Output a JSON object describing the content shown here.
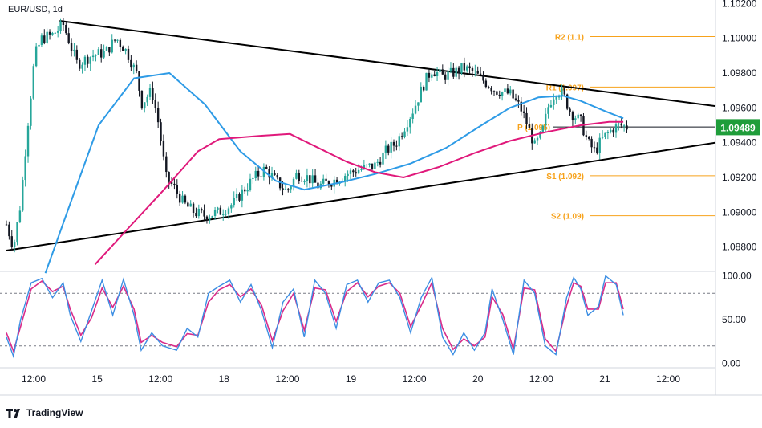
{
  "symbol_label": "EUR/USD, 1d",
  "brand": "TradingView",
  "colors": {
    "up": "#26a69a",
    "down": "#131722",
    "sma_fast": "#2e9be6",
    "sma_slow": "#e0197b",
    "pivot": "#f7a21b",
    "trendline": "#000000",
    "price_tag": "#1f9d3a",
    "stoch_k": "#3c8ee3",
    "stoch_d": "#d92c8a"
  },
  "chart_data": [
    {
      "type": "line",
      "title": "EUR/USD, 1d",
      "ylim": [
        1.0866,
        1.1022
      ],
      "y_ticks": [
        "1.10200",
        "1.10000",
        "1.09800",
        "1.09600",
        "1.09400",
        "1.09200",
        "1.09000",
        "1.08800"
      ],
      "x_ticks": [
        "12:00",
        "15",
        "12:00",
        "18",
        "12:00",
        "19",
        "12:00",
        "20",
        "12:00",
        "21",
        "12:00"
      ],
      "current_price": "1.09489",
      "pivot_levels": [
        {
          "label": "R2 (1.1)",
          "value": 1.1001
        },
        {
          "label": "R1 (1.097)",
          "value": 1.0972
        },
        {
          "label": "P (1.095)",
          "value": 1.0949
        },
        {
          "label": "S1 (1.092)",
          "value": 1.0921
        },
        {
          "label": "S2 (1.09)",
          "value": 1.0898
        }
      ],
      "trendlines": [
        {
          "name": "upper",
          "points": [
            [
              0.075,
              1.101
            ],
            [
              1.0,
              1.0961
            ]
          ]
        },
        {
          "name": "lower",
          "points": [
            [
              0.0,
              1.0878
            ],
            [
              1.0,
              1.094
            ]
          ]
        }
      ],
      "close_path": [
        [
          0.0,
          1.0893
        ],
        [
          0.01,
          1.088
        ],
        [
          0.02,
          1.0905
        ],
        [
          0.03,
          1.095
        ],
        [
          0.04,
          1.099
        ],
        [
          0.05,
          1.1
        ],
        [
          0.065,
          1.1002
        ],
        [
          0.08,
          1.1008
        ],
        [
          0.1,
          1.0985
        ],
        [
          0.12,
          1.099
        ],
        [
          0.14,
          1.0992
        ],
        [
          0.155,
          1.1
        ],
        [
          0.17,
          1.0992
        ],
        [
          0.185,
          1.0978
        ],
        [
          0.19,
          1.0962
        ],
        [
          0.205,
          1.097
        ],
        [
          0.215,
          1.095
        ],
        [
          0.225,
          1.092
        ],
        [
          0.235,
          1.0915
        ],
        [
          0.25,
          1.0905
        ],
        [
          0.265,
          1.09
        ],
        [
          0.28,
          1.0898
        ],
        [
          0.3,
          1.09
        ],
        [
          0.32,
          1.0905
        ],
        [
          0.335,
          1.0913
        ],
        [
          0.35,
          1.092
        ],
        [
          0.365,
          1.0925
        ],
        [
          0.38,
          1.0918
        ],
        [
          0.395,
          1.0912
        ],
        [
          0.41,
          1.0922
        ],
        [
          0.425,
          1.092
        ],
        [
          0.44,
          1.0915
        ],
        [
          0.46,
          1.0918
        ],
        [
          0.48,
          1.0922
        ],
        [
          0.5,
          1.0925
        ],
        [
          0.52,
          1.0927
        ],
        [
          0.535,
          1.0935
        ],
        [
          0.55,
          1.094
        ],
        [
          0.565,
          1.0952
        ],
        [
          0.575,
          1.096
        ],
        [
          0.59,
          1.0975
        ],
        [
          0.6,
          1.0982
        ],
        [
          0.615,
          1.0978
        ],
        [
          0.63,
          1.098
        ],
        [
          0.645,
          1.0983
        ],
        [
          0.66,
          1.098
        ],
        [
          0.675,
          1.0975
        ],
        [
          0.69,
          1.097
        ],
        [
          0.71,
          1.0968
        ],
        [
          0.725,
          1.096
        ],
        [
          0.735,
          1.095
        ],
        [
          0.745,
          1.0938
        ],
        [
          0.755,
          1.0945
        ],
        [
          0.765,
          1.0962
        ],
        [
          0.775,
          1.097
        ],
        [
          0.785,
          1.0968
        ],
        [
          0.795,
          1.0958
        ],
        [
          0.81,
          1.0952
        ],
        [
          0.82,
          1.094
        ],
        [
          0.83,
          1.0935
        ],
        [
          0.84,
          1.0942
        ],
        [
          0.855,
          1.0948
        ],
        [
          0.865,
          1.095
        ],
        [
          0.875,
          1.0949
        ]
      ],
      "series": [
        {
          "values": [
            [
              0.055,
              1.0865
            ],
            [
              0.09,
              1.0905
            ],
            [
              0.13,
              1.095
            ],
            [
              0.18,
              1.0977
            ],
            [
              0.23,
              1.098
            ],
            [
              0.28,
              1.0962
            ],
            [
              0.33,
              1.0935
            ],
            [
              0.38,
              1.0918
            ],
            [
              0.42,
              1.0913
            ],
            [
              0.47,
              1.0917
            ],
            [
              0.52,
              1.0922
            ],
            [
              0.57,
              1.0928
            ],
            [
              0.62,
              1.0937
            ],
            [
              0.67,
              1.095
            ],
            [
              0.71,
              1.096
            ],
            [
              0.75,
              1.0966
            ],
            [
              0.785,
              1.0967
            ],
            [
              0.81,
              1.0964
            ],
            [
              0.845,
              1.0958
            ],
            [
              0.87,
              1.0954
            ]
          ]
        },
        {
          "values": [
            [
              0.125,
              1.087
            ],
            [
              0.17,
              1.089
            ],
            [
              0.22,
              1.0912
            ],
            [
              0.27,
              1.0935
            ],
            [
              0.3,
              1.0942
            ],
            [
              0.36,
              1.0944
            ],
            [
              0.4,
              1.0945
            ],
            [
              0.44,
              1.0937
            ],
            [
              0.48,
              1.0929
            ],
            [
              0.52,
              1.0923
            ],
            [
              0.56,
              1.092
            ],
            [
              0.61,
              1.0926
            ],
            [
              0.66,
              1.0934
            ],
            [
              0.71,
              1.0941
            ],
            [
              0.76,
              1.0946
            ],
            [
              0.81,
              1.095
            ],
            [
              0.85,
              1.0952
            ],
            [
              0.87,
              1.0952
            ]
          ]
        }
      ]
    },
    {
      "type": "line",
      "ylim": [
        -5,
        105
      ],
      "y_ticks": [
        "100.00",
        "50.00",
        "0.00"
      ],
      "bands": [
        80,
        20
      ],
      "k": [
        [
          0.0,
          30
        ],
        [
          0.01,
          8
        ],
        [
          0.02,
          50
        ],
        [
          0.035,
          92
        ],
        [
          0.05,
          97
        ],
        [
          0.065,
          75
        ],
        [
          0.08,
          92
        ],
        [
          0.09,
          55
        ],
        [
          0.105,
          25
        ],
        [
          0.12,
          60
        ],
        [
          0.135,
          95
        ],
        [
          0.15,
          55
        ],
        [
          0.165,
          96
        ],
        [
          0.18,
          55
        ],
        [
          0.19,
          15
        ],
        [
          0.205,
          35
        ],
        [
          0.22,
          20
        ],
        [
          0.24,
          15
        ],
        [
          0.255,
          40
        ],
        [
          0.27,
          30
        ],
        [
          0.285,
          80
        ],
        [
          0.3,
          88
        ],
        [
          0.315,
          95
        ],
        [
          0.33,
          70
        ],
        [
          0.345,
          90
        ],
        [
          0.36,
          60
        ],
        [
          0.375,
          18
        ],
        [
          0.39,
          70
        ],
        [
          0.405,
          85
        ],
        [
          0.42,
          30
        ],
        [
          0.435,
          95
        ],
        [
          0.45,
          80
        ],
        [
          0.465,
          40
        ],
        [
          0.48,
          90
        ],
        [
          0.495,
          95
        ],
        [
          0.51,
          70
        ],
        [
          0.525,
          92
        ],
        [
          0.54,
          95
        ],
        [
          0.555,
          75
        ],
        [
          0.57,
          35
        ],
        [
          0.585,
          75
        ],
        [
          0.6,
          98
        ],
        [
          0.615,
          30
        ],
        [
          0.63,
          10
        ],
        [
          0.645,
          35
        ],
        [
          0.66,
          15
        ],
        [
          0.675,
          35
        ],
        [
          0.685,
          85
        ],
        [
          0.7,
          50
        ],
        [
          0.715,
          10
        ],
        [
          0.73,
          95
        ],
        [
          0.745,
          80
        ],
        [
          0.76,
          20
        ],
        [
          0.775,
          10
        ],
        [
          0.79,
          75
        ],
        [
          0.8,
          98
        ],
        [
          0.81,
          85
        ],
        [
          0.82,
          55
        ],
        [
          0.835,
          65
        ],
        [
          0.845,
          100
        ],
        [
          0.86,
          90
        ],
        [
          0.87,
          55
        ]
      ],
      "d": [
        [
          0.0,
          35
        ],
        [
          0.01,
          14
        ],
        [
          0.02,
          42
        ],
        [
          0.035,
          85
        ],
        [
          0.05,
          94
        ],
        [
          0.065,
          82
        ],
        [
          0.08,
          88
        ],
        [
          0.09,
          62
        ],
        [
          0.105,
          32
        ],
        [
          0.12,
          52
        ],
        [
          0.135,
          86
        ],
        [
          0.15,
          64
        ],
        [
          0.165,
          88
        ],
        [
          0.18,
          62
        ],
        [
          0.19,
          24
        ],
        [
          0.205,
          32
        ],
        [
          0.22,
          24
        ],
        [
          0.24,
          19
        ],
        [
          0.255,
          34
        ],
        [
          0.27,
          32
        ],
        [
          0.285,
          70
        ],
        [
          0.3,
          84
        ],
        [
          0.315,
          90
        ],
        [
          0.33,
          76
        ],
        [
          0.345,
          85
        ],
        [
          0.36,
          66
        ],
        [
          0.375,
          26
        ],
        [
          0.39,
          60
        ],
        [
          0.405,
          80
        ],
        [
          0.42,
          38
        ],
        [
          0.435,
          86
        ],
        [
          0.45,
          84
        ],
        [
          0.465,
          48
        ],
        [
          0.48,
          82
        ],
        [
          0.495,
          92
        ],
        [
          0.51,
          76
        ],
        [
          0.525,
          88
        ],
        [
          0.54,
          92
        ],
        [
          0.555,
          80
        ],
        [
          0.57,
          42
        ],
        [
          0.585,
          66
        ],
        [
          0.6,
          92
        ],
        [
          0.615,
          40
        ],
        [
          0.63,
          16
        ],
        [
          0.645,
          28
        ],
        [
          0.66,
          20
        ],
        [
          0.675,
          30
        ],
        [
          0.685,
          76
        ],
        [
          0.7,
          56
        ],
        [
          0.715,
          16
        ],
        [
          0.73,
          86
        ],
        [
          0.745,
          84
        ],
        [
          0.76,
          28
        ],
        [
          0.775,
          14
        ],
        [
          0.79,
          66
        ],
        [
          0.8,
          92
        ],
        [
          0.81,
          88
        ],
        [
          0.82,
          62
        ],
        [
          0.835,
          62
        ],
        [
          0.845,
          92
        ],
        [
          0.86,
          92
        ],
        [
          0.87,
          62
        ]
      ]
    }
  ]
}
